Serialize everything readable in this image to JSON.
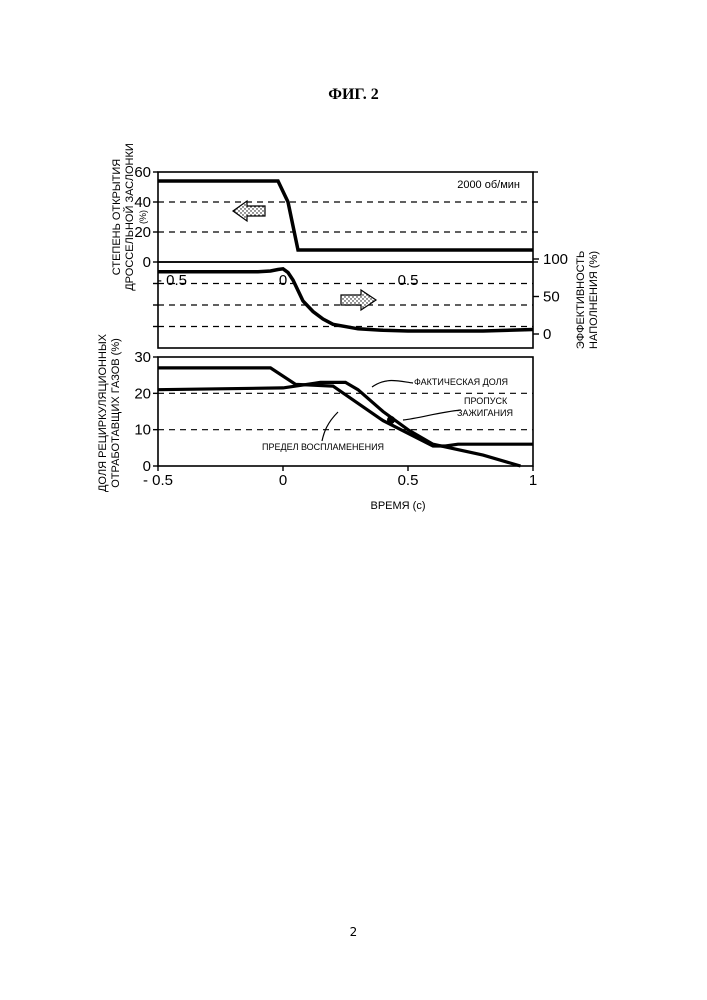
{
  "page": {
    "figure_title": "ФИГ. 2",
    "page_number": "2"
  },
  "chart_data": [
    {
      "id": "throttle",
      "type": "line",
      "annotation": "2000 об/мин",
      "ylabel": [
        "СТЕПЕНЬ ОТКРЫТИЯ",
        "ДРОССЕЛЬНОЙ ЗАСЛОНКИ",
        "(%)"
      ],
      "ylim": [
        0,
        60
      ],
      "yticks": [
        0,
        20,
        40,
        60
      ],
      "xlim": [
        -0.5,
        1
      ],
      "grid_dashed_y": [
        20,
        40
      ],
      "arrow_direction": "left",
      "series": [
        {
          "x": [
            -0.5,
            -0.02,
            0.02,
            0.06,
            1.0
          ],
          "y": [
            54,
            54,
            40,
            8,
            8
          ]
        }
      ]
    },
    {
      "id": "volumetric_efficiency",
      "type": "line",
      "ylabel_right": [
        "ЭФФЕКТИВНОСТЬ",
        "НАПОЛНЕНИЯ (%)"
      ],
      "ylim": [
        0,
        100
      ],
      "yticks_right": [
        0,
        50,
        100
      ],
      "inline_xticks": [
        "- 0.5",
        "0",
        "0.5"
      ],
      "xlim": [
        -0.5,
        1
      ],
      "grid_dashed": 3,
      "arrow_direction": "right",
      "series": [
        {
          "x": [
            -0.5,
            -0.1,
            -0.05,
            -0.02,
            0.0,
            0.02,
            0.04,
            0.06,
            0.08,
            0.12,
            0.16,
            0.2,
            0.3,
            0.4,
            0.5,
            0.6,
            0.8,
            1.0
          ],
          "y": [
            83,
            83,
            84,
            86,
            87,
            82,
            72,
            58,
            44,
            30,
            20,
            13,
            7,
            5,
            4,
            4,
            4,
            6
          ]
        }
      ]
    },
    {
      "id": "egr_ratio",
      "type": "line",
      "ylabel": [
        "ДОЛЯ РЕЦИРКУЛЯЦИОННЫХ",
        "ОТРАБОТАВЩИХ ГАЗОВ (%)"
      ],
      "xlabel": "ВРЕМЯ (с)",
      "ylim": [
        0,
        30
      ],
      "yticks": [
        0,
        10,
        20,
        30
      ],
      "xlim": [
        -0.5,
        1
      ],
      "xticks": [
        "- 0.5",
        "0",
        "0.5",
        "1"
      ],
      "grid_dashed_y": [
        10,
        20
      ],
      "annotations": [
        "ФАКТИЧЕСКАЯ ДОЛЯ",
        "ПРОПУСК",
        "ЗАЖИГАНИЯ",
        "ПРЕДЕЛ ВОСПЛАМЕНЕНИЯ"
      ],
      "shaded_region": "misfire",
      "series": [
        {
          "label_ref": "ФАКТИЧЕСКАЯ ДОЛЯ",
          "x": [
            -0.5,
            -0.05,
            0.05,
            0.2,
            0.4,
            0.6,
            0.65,
            0.7,
            1.0
          ],
          "y": [
            27,
            27,
            22.5,
            22,
            12.5,
            5.5,
            5.5,
            6,
            6
          ]
        },
        {
          "label_ref": "ПРЕДЕЛ ВОСПЛАМЕНЕНИЯ",
          "x": [
            -0.5,
            0.0,
            0.15,
            0.25,
            0.3,
            0.4,
            0.5,
            0.6,
            0.8,
            0.95
          ],
          "y": [
            21,
            21.5,
            23,
            23,
            21,
            15,
            10,
            6,
            3,
            0
          ]
        }
      ]
    }
  ]
}
